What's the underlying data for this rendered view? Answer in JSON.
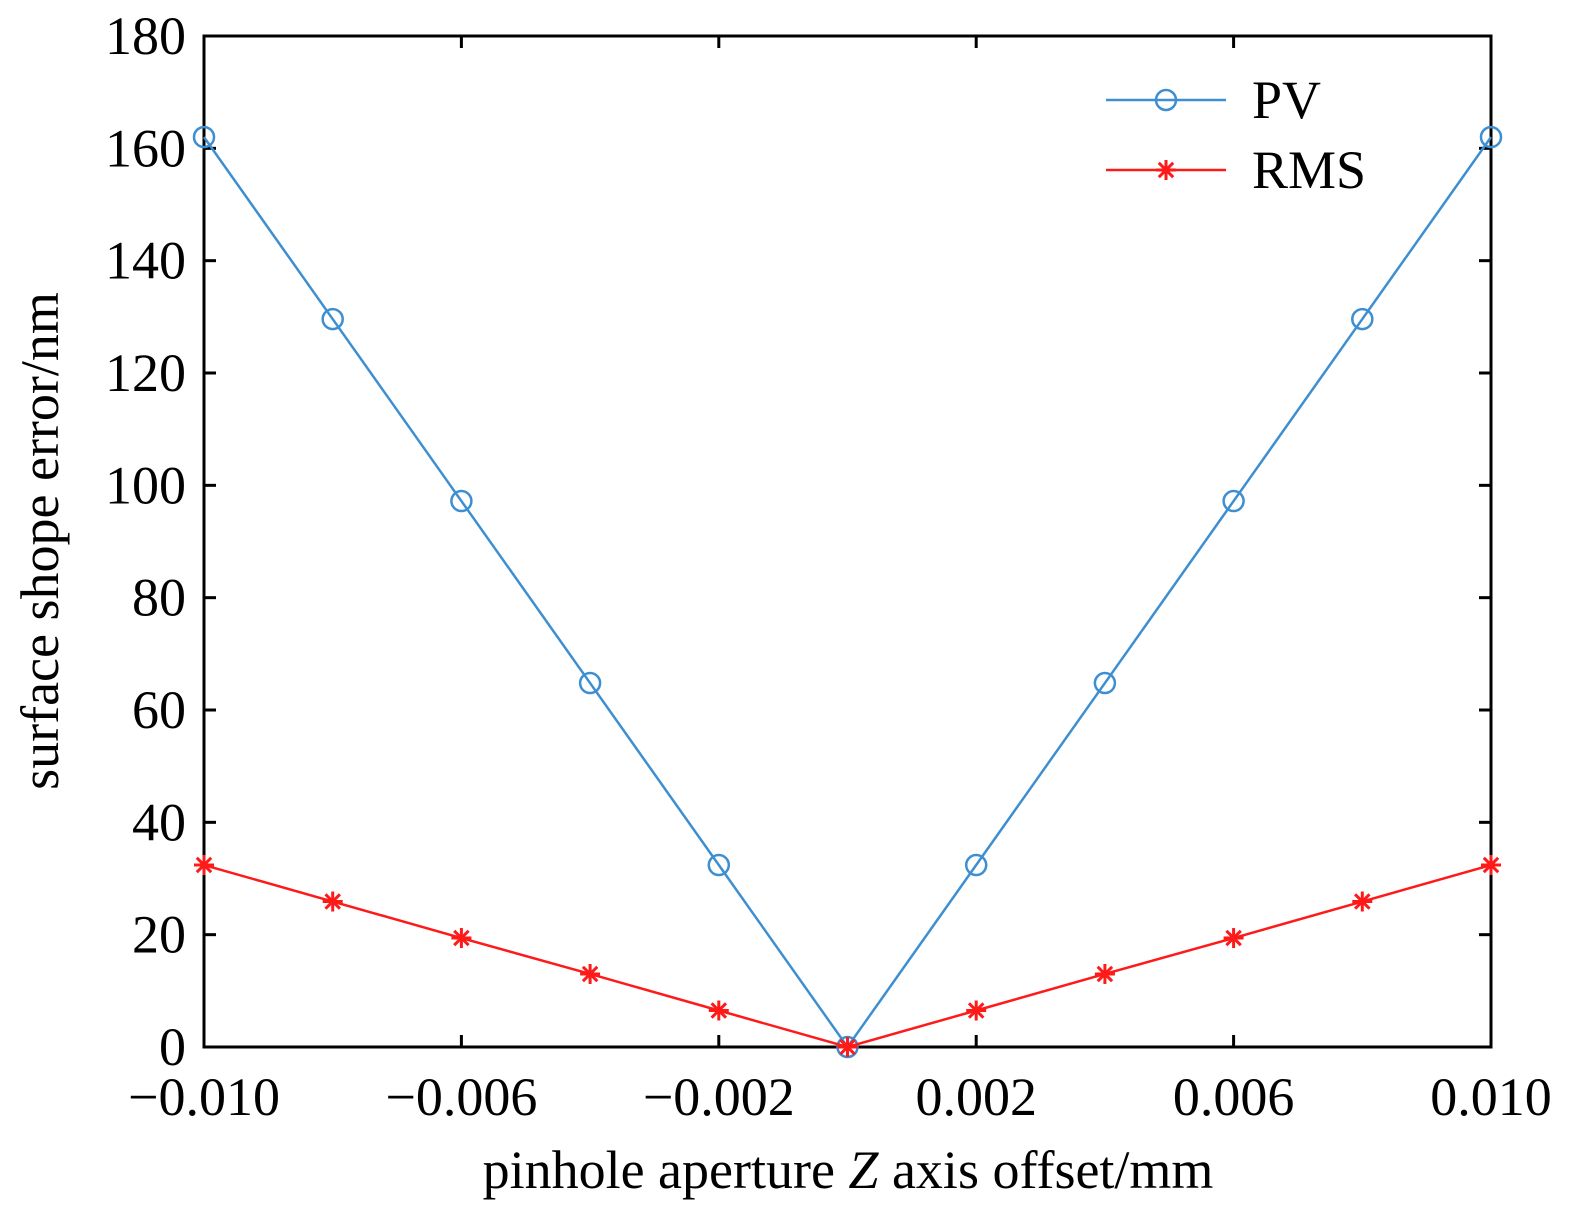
{
  "chart_data": {
    "type": "line",
    "title": "",
    "xlabel": "pinhole aperture Z axis offset/mm",
    "xlabel_parts": [
      "pinhole aperture ",
      "Z",
      " axis offset/mm"
    ],
    "ylabel": "surface shope error/nm",
    "xlim": [
      -0.01,
      0.01
    ],
    "ylim": [
      0,
      180
    ],
    "x_ticks": [
      -0.01,
      -0.006,
      -0.002,
      0.002,
      0.006,
      0.01
    ],
    "x_tick_labels": [
      "−0.010",
      "−0.006",
      "−0.002",
      "0.002",
      "0.006",
      "0.010"
    ],
    "y_ticks": [
      0,
      20,
      40,
      60,
      80,
      100,
      120,
      140,
      160,
      180
    ],
    "y_tick_labels": [
      "0",
      "20",
      "40",
      "60",
      "80",
      "100",
      "120",
      "140",
      "160",
      "180"
    ],
    "grid": false,
    "legend_position": "top-right",
    "x": [
      -0.01,
      -0.008,
      -0.006,
      -0.004,
      -0.002,
      0.0,
      0.002,
      0.004,
      0.006,
      0.008,
      0.01
    ],
    "series": [
      {
        "name": "PV",
        "color": "#3d8fd1",
        "marker": "circle",
        "values": [
          162,
          129.6,
          97.2,
          64.8,
          32.4,
          0,
          32.4,
          64.8,
          97.2,
          129.6,
          162
        ]
      },
      {
        "name": "RMS",
        "color": "#ff1a1a",
        "marker": "asterisk",
        "values": [
          32.4,
          25.9,
          19.4,
          13.0,
          6.5,
          0,
          6.5,
          13.0,
          19.4,
          25.9,
          32.4
        ]
      }
    ]
  }
}
